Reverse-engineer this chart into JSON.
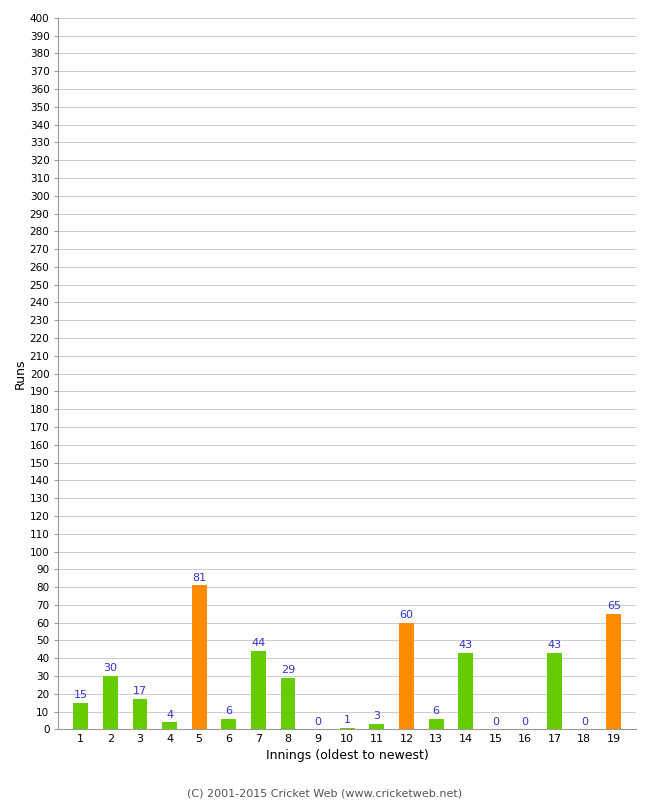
{
  "innings": [
    1,
    2,
    3,
    4,
    5,
    6,
    7,
    8,
    9,
    10,
    11,
    12,
    13,
    14,
    15,
    16,
    17,
    18,
    19
  ],
  "values": [
    15,
    30,
    17,
    4,
    81,
    6,
    44,
    29,
    0,
    1,
    3,
    60,
    6,
    43,
    0,
    0,
    43,
    0,
    65
  ],
  "colors": [
    "#66cc00",
    "#66cc00",
    "#66cc00",
    "#66cc00",
    "#ff8c00",
    "#66cc00",
    "#66cc00",
    "#66cc00",
    "#66cc00",
    "#66cc00",
    "#66cc00",
    "#ff8c00",
    "#66cc00",
    "#66cc00",
    "#66cc00",
    "#66cc00",
    "#66cc00",
    "#66cc00",
    "#ff8c00"
  ],
  "xlabel": "Innings (oldest to newest)",
  "ylabel": "Runs",
  "ylim": [
    0,
    400
  ],
  "yticks": [
    0,
    10,
    20,
    30,
    40,
    50,
    60,
    70,
    80,
    90,
    100,
    110,
    120,
    130,
    140,
    150,
    160,
    170,
    180,
    190,
    200,
    210,
    220,
    230,
    240,
    250,
    260,
    270,
    280,
    290,
    300,
    310,
    320,
    330,
    340,
    350,
    360,
    370,
    380,
    390,
    400
  ],
  "label_color": "#3333cc",
  "bg_color": "#ffffff",
  "grid_color": "#cccccc",
  "footer": "(C) 2001-2015 Cricket Web (www.cricketweb.net)"
}
